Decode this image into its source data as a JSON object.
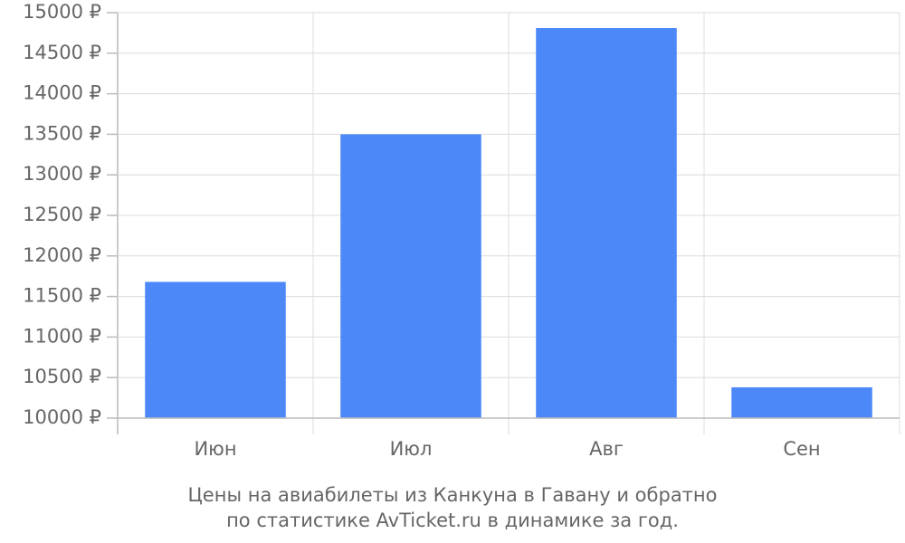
{
  "chart_data": {
    "type": "bar",
    "title_lines": [
      "Цены на авиабилеты из Канкуна в Гавану и обратно",
      "по статистике AvTicket.ru в динамике за год."
    ],
    "categories": [
      "Июн",
      "Июл",
      "Авг",
      "Сен"
    ],
    "values": [
      11680,
      13500,
      14810,
      10380
    ],
    "color": "#4d88f9",
    "ylim": [
      10000,
      15000
    ],
    "yticks": [
      {
        "value": 10000,
        "label": "10000 ₽"
      },
      {
        "value": 10500,
        "label": "10500 ₽"
      },
      {
        "value": 11000,
        "label": "11000 ₽"
      },
      {
        "value": 11500,
        "label": "11500 ₽"
      },
      {
        "value": 12000,
        "label": "12000 ₽"
      },
      {
        "value": 12500,
        "label": "12500 ₽"
      },
      {
        "value": 13000,
        "label": "13000 ₽"
      },
      {
        "value": 13500,
        "label": "13500 ₽"
      },
      {
        "value": 14000,
        "label": "14000 ₽"
      },
      {
        "value": 14500,
        "label": "14500 ₽"
      },
      {
        "value": 15000,
        "label": "15000 ₽"
      }
    ],
    "grid": true
  }
}
